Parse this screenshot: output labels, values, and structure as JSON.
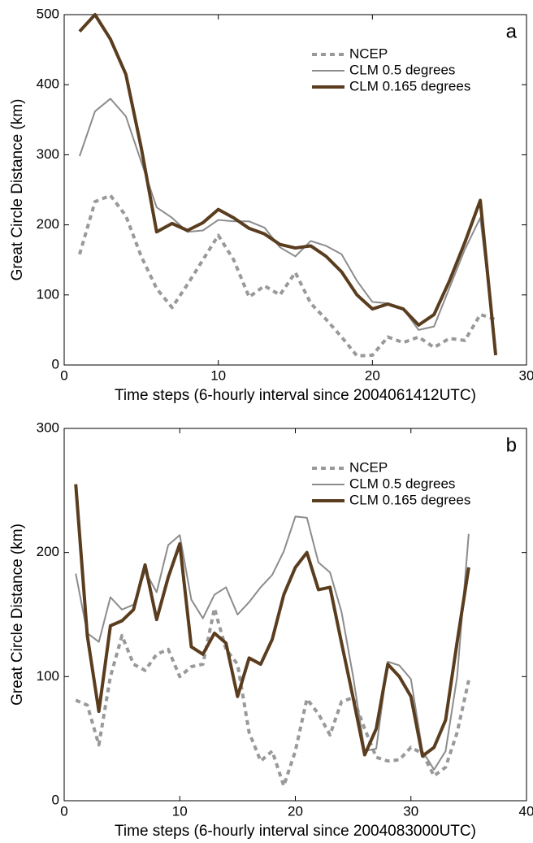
{
  "chart_data": [
    {
      "type": "line",
      "panel_label": "a",
      "xlabel": "Time steps (6-hourly interval since 2004061412UTC)",
      "ylabel": "Great Circle Distance (km)",
      "x": [
        1,
        2,
        3,
        4,
        5,
        6,
        7,
        8,
        9,
        10,
        11,
        12,
        13,
        14,
        15,
        16,
        17,
        18,
        19,
        20,
        21,
        22,
        23,
        24,
        25,
        26,
        27,
        28
      ],
      "xlim": [
        0,
        30
      ],
      "xticks": [
        0,
        10,
        20,
        30
      ],
      "ylim": [
        0,
        500
      ],
      "yticks": [
        0,
        100,
        200,
        300,
        400,
        500
      ],
      "series": [
        {
          "name": "NCEP",
          "color": "#999999",
          "linestyle": "dashed",
          "width": 4,
          "values": [
            158,
            233,
            242,
            213,
            155,
            109,
            82,
            115,
            150,
            185,
            150,
            97,
            113,
            100,
            132,
            88,
            65,
            40,
            13,
            14,
            40,
            32,
            40,
            25,
            38,
            35,
            72,
            65
          ]
        },
        {
          "name": "CLM 0.5 degrees",
          "color": "#8c8c8c",
          "linestyle": "solid",
          "width": 2,
          "values": [
            298,
            362,
            380,
            355,
            290,
            225,
            210,
            190,
            192,
            207,
            205,
            205,
            196,
            168,
            155,
            177,
            170,
            158,
            120,
            90,
            88,
            80,
            50,
            55,
            110,
            165,
            210,
            25
          ]
        },
        {
          "name": "CLM 0.165 degrees",
          "color": "#5a3c1e",
          "linestyle": "solid",
          "width": 4,
          "values": [
            476,
            500,
            465,
            415,
            310,
            190,
            202,
            192,
            203,
            222,
            210,
            195,
            187,
            172,
            167,
            170,
            155,
            133,
            100,
            80,
            87,
            80,
            57,
            72,
            120,
            175,
            235,
            14
          ]
        }
      ]
    },
    {
      "type": "line",
      "panel_label": "b",
      "xlabel": "Time steps (6-hourly interval since 2004083000UTC)",
      "ylabel": "Great Circle Distance (km)",
      "x": [
        1,
        2,
        3,
        4,
        5,
        6,
        7,
        8,
        9,
        10,
        11,
        12,
        13,
        14,
        15,
        16,
        17,
        18,
        19,
        20,
        21,
        22,
        23,
        24,
        25,
        26,
        27,
        28,
        29,
        30,
        31,
        32,
        33,
        34,
        35
      ],
      "xlim": [
        0,
        40
      ],
      "xticks": [
        0,
        10,
        20,
        30,
        40
      ],
      "ylim": [
        0,
        300
      ],
      "yticks": [
        0,
        100,
        200,
        300
      ],
      "series": [
        {
          "name": "NCEP",
          "color": "#999999",
          "linestyle": "dashed",
          "width": 4,
          "values": [
            81,
            77,
            45,
            100,
            133,
            110,
            105,
            118,
            122,
            100,
            108,
            110,
            155,
            122,
            110,
            55,
            32,
            40,
            12,
            40,
            82,
            70,
            53,
            80,
            83,
            58,
            35,
            32,
            33,
            43,
            38,
            20,
            27,
            55,
            97
          ]
        },
        {
          "name": "CLM 0.5 degrees",
          "color": "#8c8c8c",
          "linestyle": "solid",
          "width": 2,
          "values": [
            183,
            135,
            128,
            164,
            154,
            158,
            185,
            168,
            206,
            214,
            162,
            147,
            166,
            172,
            150,
            160,
            172,
            182,
            201,
            229,
            228,
            192,
            184,
            152,
            100,
            40,
            42,
            112,
            109,
            98,
            40,
            25,
            40,
            100,
            215
          ]
        },
        {
          "name": "CLM 0.165 degrees",
          "color": "#5a3c1e",
          "linestyle": "solid",
          "width": 4,
          "values": [
            255,
            133,
            72,
            141,
            145,
            154,
            190,
            146,
            180,
            207,
            124,
            118,
            135,
            127,
            84,
            115,
            110,
            130,
            166,
            188,
            200,
            170,
            172,
            127,
            83,
            37,
            58,
            110,
            100,
            84,
            36,
            43,
            65,
            128,
            188
          ]
        }
      ]
    }
  ]
}
